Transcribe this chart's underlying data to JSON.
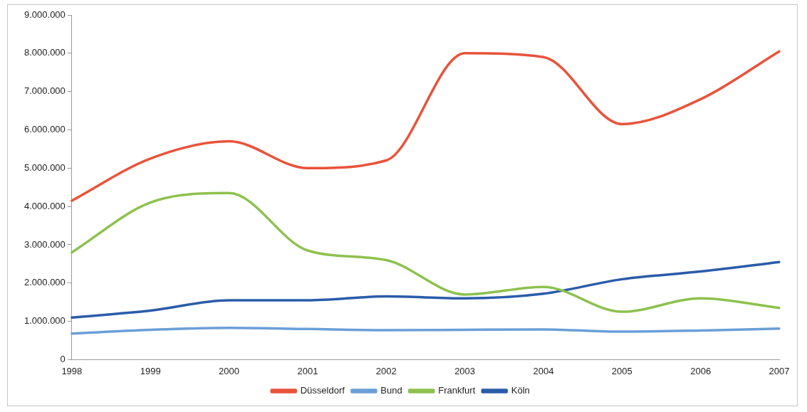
{
  "chart_data": {
    "type": "line",
    "categories": [
      "1998",
      "1999",
      "2000",
      "2001",
      "2002",
      "2003",
      "2004",
      "2005",
      "2006",
      "2007"
    ],
    "series": [
      {
        "name": "Düsseldorf",
        "color": "#e8533a",
        "values": [
          4150000,
          5250000,
          5700000,
          5000000,
          5200000,
          8000000,
          7900000,
          6150000,
          6800000,
          8050000
        ]
      },
      {
        "name": "Bund",
        "color": "#6a9fd8",
        "values": [
          680000,
          780000,
          830000,
          800000,
          770000,
          780000,
          790000,
          730000,
          760000,
          810000
        ]
      },
      {
        "name": "Frankfurt",
        "color": "#8dc14e",
        "values": [
          2800000,
          4100000,
          4350000,
          2850000,
          2600000,
          1700000,
          1900000,
          1250000,
          1600000,
          1350000
        ]
      },
      {
        "name": "Köln",
        "color": "#2a5caa",
        "values": [
          1100000,
          1280000,
          1550000,
          1550000,
          1650000,
          1600000,
          1720000,
          2100000,
          2300000,
          2550000
        ]
      }
    ],
    "ylim": [
      0,
      9000000
    ],
    "yticks": [
      {
        "value": 0,
        "label": "0"
      },
      {
        "value": 1000000,
        "label": "1.000.000"
      },
      {
        "value": 2000000,
        "label": "2.000.000"
      },
      {
        "value": 3000000,
        "label": "3.000.000"
      },
      {
        "value": 4000000,
        "label": "4.000.000"
      },
      {
        "value": 5000000,
        "label": "5.000.000"
      },
      {
        "value": 6000000,
        "label": "6.000.000"
      },
      {
        "value": 7000000,
        "label": "7.000.000"
      },
      {
        "value": 8000000,
        "label": "8.000.000"
      },
      {
        "value": 9000000,
        "label": "9.000.000"
      }
    ],
    "grid": false,
    "legend": "bottom",
    "marker": "none",
    "line_style": "solid"
  }
}
